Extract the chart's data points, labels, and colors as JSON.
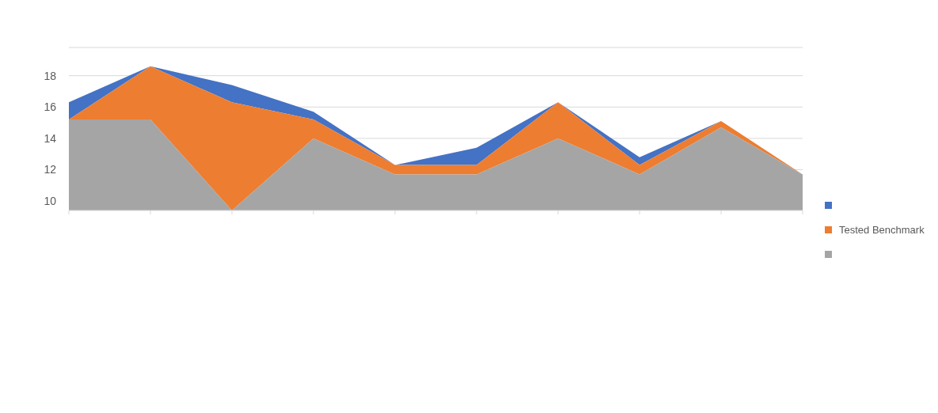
{
  "chart_data": {
    "type": "area",
    "categories": [
      null,
      null,
      null,
      null,
      null,
      null,
      null,
      null,
      null,
      null
    ],
    "series": [
      {
        "color": "#4472c4",
        "values": [
          16.3,
          18.6,
          17.4,
          15.7,
          12.3,
          13.4,
          16.3,
          12.8,
          15.1,
          11.7
        ]
      },
      {
        "name": "Tested Benchmark",
        "color": "#ed7d31",
        "values": [
          15.2,
          18.6,
          16.3,
          15.2,
          12.3,
          12.3,
          16.3,
          12.3,
          15.1,
          11.7
        ]
      },
      {
        "color": "#a5a5a5",
        "values": [
          15.2,
          15.2,
          9.4,
          14.0,
          11.7,
          11.7,
          14.0,
          11.7,
          14.7,
          11.7
        ]
      }
    ],
    "ylim": [
      9.4,
      19.8
    ],
    "yticks": [
      10,
      12,
      14,
      16,
      18,
      {
        "value": 19.8,
        "label": null
      }
    ],
    "grid": "y",
    "legend": "right"
  }
}
